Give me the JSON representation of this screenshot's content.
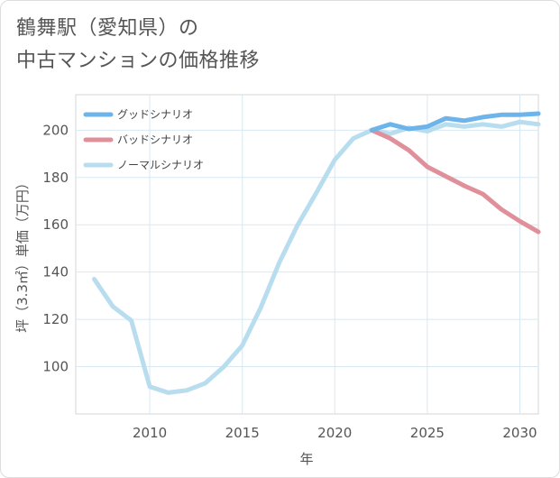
{
  "header": {
    "title_line1": "鶴舞駅（愛知県）の",
    "title_line2": "中古マンションの価格推移"
  },
  "chart_data": {
    "type": "line",
    "title": "鶴舞駅（愛知県）の中古マンションの価格推移",
    "xlabel": "年",
    "ylabel": "坪（3.3㎡）単価（万円）",
    "xlim": [
      2006,
      2031
    ],
    "ylim": [
      80,
      215
    ],
    "x_ticks": [
      2010,
      2015,
      2020,
      2025,
      2030
    ],
    "y_ticks": [
      100,
      120,
      140,
      160,
      180,
      200
    ],
    "grid": true,
    "legend_position": "top-left",
    "series": [
      {
        "name": "グッドシナリオ",
        "color": "#6cb4ea",
        "x": [
          2022,
          2023,
          2024,
          2025,
          2026,
          2027,
          2028,
          2029,
          2030,
          2031
        ],
        "values": [
          200,
          202.5,
          200.5,
          201.5,
          205,
          204,
          205.5,
          206.5,
          206.5,
          207
        ]
      },
      {
        "name": "バッドシナリオ",
        "color": "#e0909a",
        "x": [
          2022,
          2023,
          2024,
          2025,
          2026,
          2027,
          2028,
          2029,
          2030,
          2031
        ],
        "values": [
          200,
          196.5,
          191.5,
          184.5,
          180.5,
          176.5,
          173,
          166.5,
          161.5,
          157
        ]
      },
      {
        "name": "ノーマルシナリオ",
        "color": "#b8ddef",
        "x": [
          2007,
          2008,
          2009,
          2010,
          2011,
          2012,
          2013,
          2014,
          2015,
          2016,
          2017,
          2018,
          2019,
          2020,
          2021,
          2022,
          2023,
          2024,
          2025,
          2026,
          2027,
          2028,
          2029,
          2030,
          2031
        ],
        "values": [
          137,
          125.5,
          119.5,
          91.5,
          89,
          90,
          93,
          100,
          109,
          125,
          144,
          160,
          173.5,
          187.5,
          196.5,
          200,
          198.5,
          201,
          199.5,
          202.5,
          201.5,
          202.5,
          201.5,
          203.5,
          202.5
        ]
      }
    ]
  }
}
